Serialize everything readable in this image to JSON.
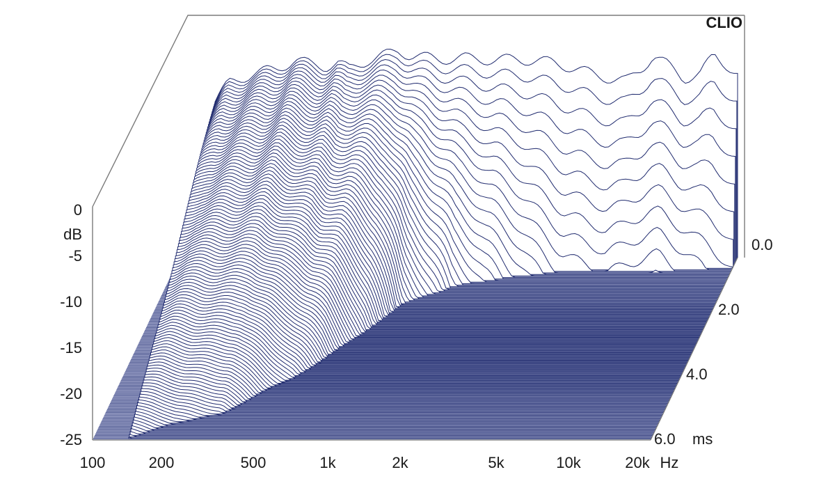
{
  "chart_data": {
    "type": "waterfall",
    "brand": "CLIO",
    "x_axis": {
      "scale": "log",
      "range": [
        100,
        20000
      ],
      "tick_labels": [
        "100",
        "200",
        "500",
        "1k",
        "2k",
        "5k",
        "10k",
        "20k"
      ],
      "tick_values": [
        100,
        200,
        500,
        1000,
        2000,
        5000,
        10000,
        20000
      ],
      "unit": "Hz"
    },
    "y_axis": {
      "range": [
        -25,
        0
      ],
      "tick_labels": [
        "0",
        "-5",
        "-10",
        "-15",
        "-20",
        "-25"
      ],
      "tick_values": [
        0,
        -5,
        -10,
        -15,
        -20,
        -25
      ],
      "unit": "dB"
    },
    "z_axis": {
      "range": [
        0,
        6
      ],
      "tick_labels": [
        "0.0",
        "2.0",
        "4.0",
        "6.0"
      ],
      "tick_values": [
        0,
        2,
        4,
        6
      ],
      "unit": "ms"
    },
    "series_color": "#1f2a6e",
    "slice_count": 120,
    "initial_response": {
      "freq_hz": [
        140,
        160,
        200,
        250,
        300,
        350,
        400,
        450,
        500,
        600,
        700,
        800,
        900,
        1000,
        1200,
        1500,
        2000,
        2500,
        3000,
        3500,
        4000,
        5000,
        6000,
        7000,
        8000,
        9000,
        10000,
        12000,
        14000,
        16000,
        18000,
        20000
      ],
      "db": [
        -8,
        -6,
        -5,
        -4.5,
        -3.5,
        -4,
        -4.2,
        -3.8,
        -4.5,
        -3.5,
        -3,
        -2.5,
        -3,
        -3.2,
        -3.4,
        -3.3,
        -3.5,
        -3.4,
        -3.6,
        -3.8,
        -4.2,
        -5,
        -5.5,
        -5.8,
        -4.5,
        -3,
        -3.8,
        -5.5,
        -5,
        -3,
        -4,
        -5
      ]
    },
    "decay_ms_per_db": {
      "freq_hz": [
        140,
        200,
        300,
        400,
        500,
        600,
        800,
        1000,
        1500,
        2000,
        3000,
        4000,
        6000,
        10000,
        20000
      ],
      "ms": [
        6,
        5.5,
        5.2,
        4.5,
        4,
        3.5,
        2.5,
        1.6,
        1.0,
        0.8,
        0.6,
        0.5,
        0.45,
        0.5,
        0.35
      ]
    }
  }
}
